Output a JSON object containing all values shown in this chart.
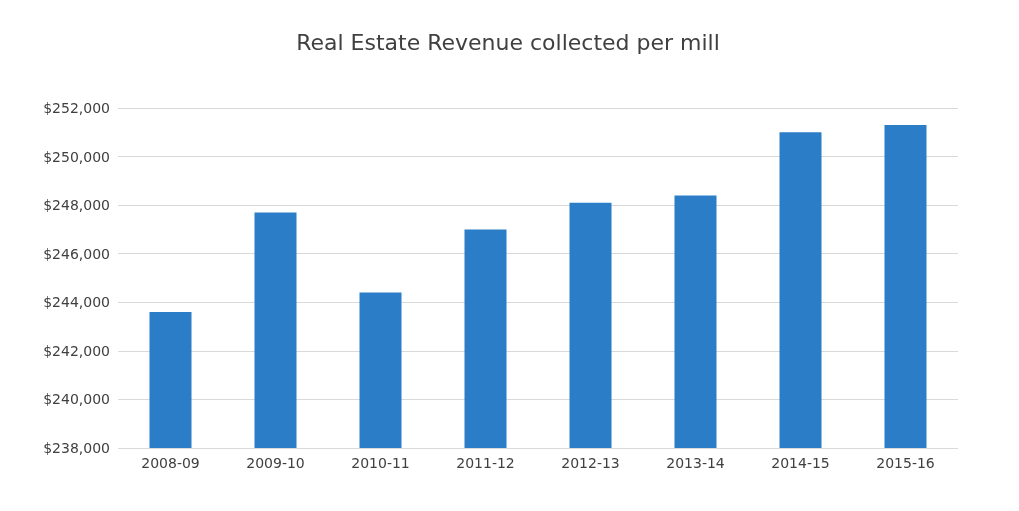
{
  "chart_data": {
    "type": "bar",
    "title": "Real Estate Revenue collected per mill",
    "categories": [
      "2008-09",
      "2009-10",
      "2010-11",
      "2011-12",
      "2012-13",
      "2013-14",
      "2014-15",
      "2015-16"
    ],
    "values": [
      243600,
      247700,
      244400,
      247000,
      248100,
      248400,
      251000,
      251300
    ],
    "color": "#2a7dc6",
    "ylim": [
      238000,
      252000
    ],
    "yticks": [
      {
        "value": 238000,
        "label": "$238,000"
      },
      {
        "value": 240000,
        "label": "$240,000"
      },
      {
        "value": 242000,
        "label": "$242,000"
      },
      {
        "value": 244000,
        "label": "$244,000"
      },
      {
        "value": 246000,
        "label": "$246,000"
      },
      {
        "value": 248000,
        "label": "$248,000"
      },
      {
        "value": 250000,
        "label": "$250,000"
      },
      {
        "value": 252000,
        "label": "$252,000"
      }
    ],
    "grid": true
  }
}
